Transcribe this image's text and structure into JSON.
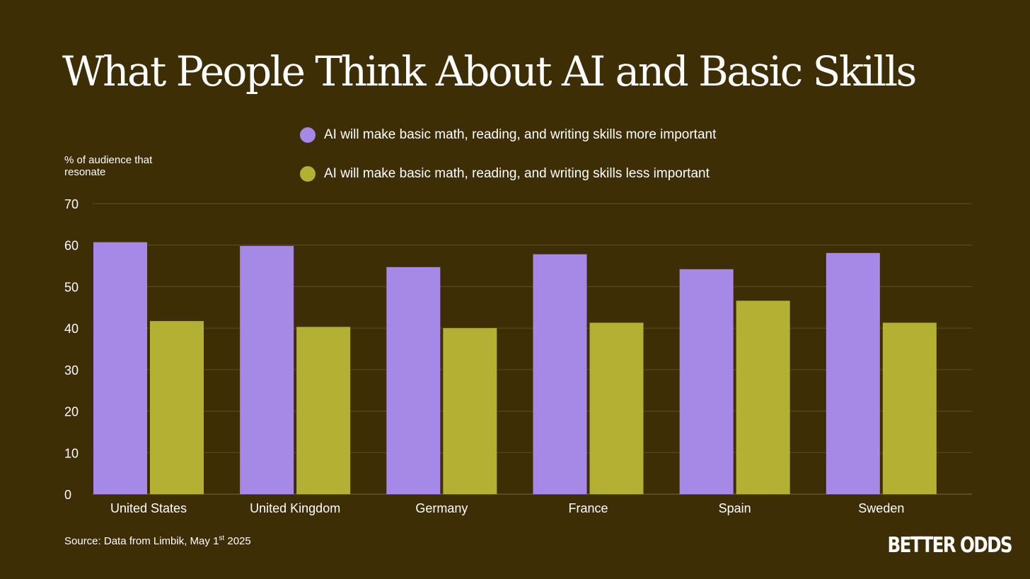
{
  "chart_data": {
    "type": "bar",
    "title": "What People Think About AI and Basic Skills",
    "ylabel": "% of audience that resonate",
    "categories": [
      "United States",
      "United Kingdom",
      "Germany",
      "France",
      "Spain",
      "Sweden"
    ],
    "series": [
      {
        "name": "AI will make basic math, reading, and writing skills more important",
        "color": "#a688e6",
        "values": [
          60.7,
          59.8,
          54.7,
          57.8,
          54.2,
          58.1
        ]
      },
      {
        "name": "AI will make basic math, reading, and writing skills less important",
        "color": "#b3b034",
        "values": [
          41.7,
          40.3,
          40.0,
          41.3,
          46.6,
          41.3
        ]
      }
    ],
    "ylim": [
      0,
      70
    ],
    "yticks": [
      "0",
      "10",
      "20",
      "30",
      "40",
      "50",
      "60",
      "70"
    ],
    "grid": true,
    "legend_position": "top-center"
  },
  "footer": {
    "source_prefix": "Source: Data from Limbik, May 1",
    "source_sup": "st",
    "source_suffix": " 2025",
    "brand": "BETTER ODDS"
  }
}
